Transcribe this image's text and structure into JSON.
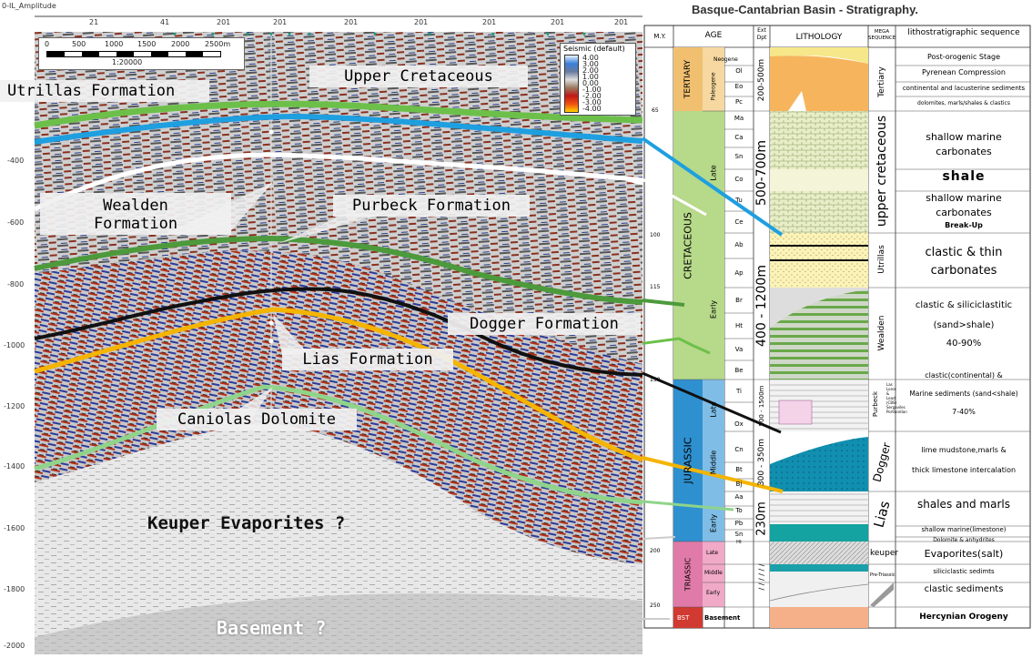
{
  "seismic": {
    "legend": {
      "title": "Seismic (default)",
      "values": [
        "4.00",
        "3.00",
        "2.00",
        "1.00",
        "0.00",
        "-1.00",
        "-2.00",
        "-3.00",
        "-4.00"
      ]
    },
    "scalebar": {
      "ticks": [
        "0",
        "500",
        "1000",
        "1500",
        "2000",
        "2500m"
      ],
      "unit": "1:20000"
    },
    "depth_ticks": [
      "-400",
      "-600",
      "-800",
      "-1000",
      "-1200",
      "-1400",
      "-1600",
      "-1800",
      "-2000"
    ],
    "top_ticks": [
      "0-IL_Amplitude",
      "21",
      "41",
      "201",
      "201",
      "201",
      "201",
      "201",
      "201",
      "201"
    ],
    "labels": {
      "upper_cretaceous": "Upper Cretaceous",
      "utrillas": "Utrillas Formation",
      "wealden_1": "Wealden",
      "wealden_2": "Formation",
      "purbeck": "Purbeck Formation",
      "dogger": "Dogger Formation",
      "lias": "Lias Formation",
      "caniolas": "Caniolas Dolomite",
      "keuper": "Keuper Evaporites ?",
      "basement": "Basement ?"
    }
  },
  "strat": {
    "title": "Basque-Cantabrian Basin  -  Stratigraphy.",
    "headers": {
      "my": "M.Y.",
      "age": "AGE",
      "ext": "Ext Dpt",
      "lithology": "LITHOLOGY",
      "mega": "MEGA SEQUENCE",
      "litho_seq": "lithostratigraphic sequence"
    },
    "ma": [
      "65",
      "100",
      "115",
      "150",
      "200",
      "250"
    ],
    "systems": [
      "TERTIARY",
      "CRETACEOUS",
      "JURASSIC",
      "TRIASSIC",
      "BST"
    ],
    "epochs": [
      "Neogene",
      "Paleogene",
      "Late",
      "Early",
      "Late",
      "Middle",
      "Early",
      "Late",
      "Middle",
      "Early",
      "Basement"
    ],
    "stages": [
      "Ol",
      "Eo",
      "Pc",
      "Ma",
      "Ca",
      "Sn",
      "Co",
      "Tu",
      "Ce",
      "Ab",
      "Ap",
      "Br",
      "Ht",
      "Va",
      "Be",
      "Ti",
      "Ox",
      "Cn",
      "Bt",
      "Bj",
      "Aa",
      "To",
      "Pb",
      "Sn",
      "Ht"
    ],
    "thickness": [
      "200-500m",
      "500-700m",
      "400 - 1200m",
      "500 - 1500m",
      "300 - 350m",
      "230m",
      "/ / / / / /"
    ],
    "mega": [
      "Tertiary",
      "upper cretaceous",
      "Utrillas",
      "Wealden",
      "Purbeck",
      "Dogger",
      "Lias",
      "keuper",
      "Pre-Triassic"
    ],
    "purbeck_sub": [
      "Las Loros &",
      "Lead (CBS)",
      "Sergaviles",
      "Portlandian"
    ],
    "desc": [
      "Post-orogenic Stage",
      "Pyrenean Compression",
      "continental and lacusterine sediments",
      "dolomites, marls/shales & clastics",
      "shallow marine",
      "carbonates",
      "shale",
      "shallow marine",
      "carbonates",
      "Break-Up",
      "clastic & thin",
      "carbonates",
      "clastic & siliciclastitic",
      "(sand>shale)",
      "40-90%",
      "clastic(continental) &",
      "Marine sediments (sand<shale)",
      "7-40%",
      "lime mudstone,marls &",
      "thick limestone intercalation",
      "shales and marls",
      "shallow marine(limestone)",
      "Dolomite & anhydrites",
      "Evaporites(salt)",
      "siliciclastic sedimts",
      "clastic sediments",
      "Hercynian Orogeny"
    ]
  },
  "colors": {
    "green": "#6cc04a",
    "blue": "#1e9fe0",
    "white": "#ffffff",
    "black": "#111111",
    "orange": "#f4b400",
    "lightgreen": "#8fd48a"
  }
}
